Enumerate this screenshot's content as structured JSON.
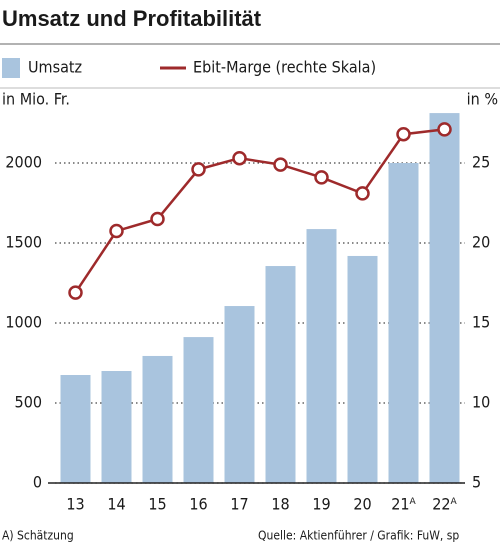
{
  "chart_data": {
    "type": "bar-line",
    "title": "Umsatz und Profitabilität",
    "y_label": "in Mio. Fr.",
    "y2_label": "in %",
    "categories": [
      "13",
      "14",
      "15",
      "16",
      "17",
      "18",
      "19",
      "20",
      "21ᴬ",
      "22ᴬ"
    ],
    "series": [
      {
        "name": "Umsatz",
        "color": "#a9c4de",
        "type": "bar",
        "values": [
          675,
          700,
          794,
          912,
          1106,
          1356,
          1587,
          1419,
          2000,
          2312
        ]
      },
      {
        "name": "Ebit-Marge (rechte Skala)",
        "color": "#9e2a2b",
        "type": "line",
        "axis": "y2",
        "values": [
          16.9,
          20.75,
          21.5,
          24.6,
          25.3,
          24.9,
          24.1,
          23.1,
          26.8,
          27.1
        ]
      }
    ],
    "ylim": [
      0,
      2350
    ],
    "yticks": [
      0,
      500,
      1000,
      1500,
      2000
    ],
    "y2lim": [
      5,
      28.5
    ],
    "y2ticks": [
      5,
      10,
      15,
      20,
      25
    ],
    "grid": true,
    "footnote": "A) Schätzung",
    "source": "Quelle:  Aktienführer / Grafik: FuW, sp"
  }
}
